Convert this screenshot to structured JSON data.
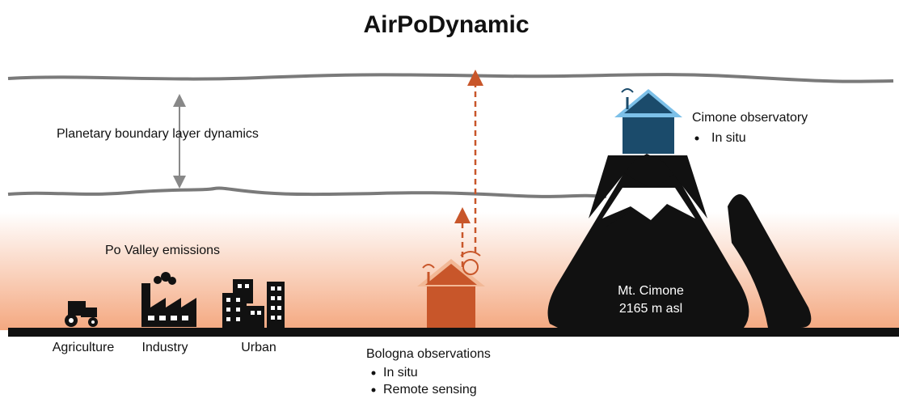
{
  "title": "AirPoDynamic",
  "pbl": {
    "label": "Planetary boundary layer dynamics"
  },
  "emissions": {
    "title": "Po Valley emissions",
    "sources": [
      "Agriculture",
      "Industry",
      "Urban"
    ]
  },
  "bologna": {
    "title": "Bologna observations",
    "items": [
      "In situ",
      "Remote sensing"
    ]
  },
  "cimone": {
    "title": "Cimone observatory",
    "items": [
      "In situ"
    ],
    "mountain": [
      "Mt. Cimone",
      "2165 m asl"
    ]
  }
}
